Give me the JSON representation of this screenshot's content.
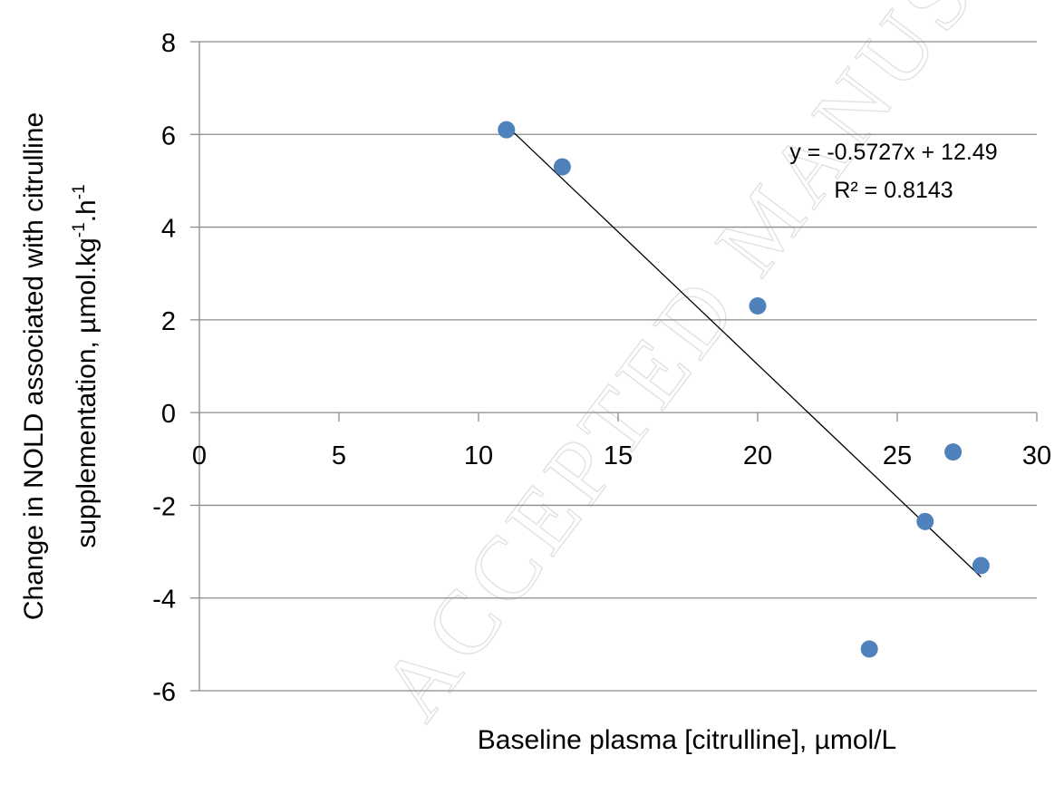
{
  "chart_data": {
    "type": "scatter",
    "title": "",
    "xlabel": "Baseline plasma [citrulline], µmol/L",
    "ylabel_line1": "Change in NOLD associated with citrulline",
    "ylabel_line2": "supplementation, µmol.kg",
    "ylabel_sup1": "-1",
    "ylabel_mid": ".h",
    "ylabel_sup2": "-1",
    "xlim": [
      0,
      30
    ],
    "ylim": [
      -6,
      8
    ],
    "x_ticks": [
      0,
      5,
      10,
      15,
      20,
      25,
      30
    ],
    "y_ticks": [
      -6,
      -4,
      -2,
      0,
      2,
      4,
      6,
      8
    ],
    "grid": "horizontal",
    "points": [
      {
        "x": 11,
        "y": 6.1
      },
      {
        "x": 13,
        "y": 5.3
      },
      {
        "x": 20,
        "y": 2.3
      },
      {
        "x": 24,
        "y": -5.1
      },
      {
        "x": 26,
        "y": -2.35
      },
      {
        "x": 27,
        "y": -0.85
      },
      {
        "x": 28,
        "y": -3.3
      }
    ],
    "trendline": {
      "slope": -0.5727,
      "intercept": 12.49,
      "x_start": 11,
      "x_end": 28
    },
    "equation_label": "y = -0.5727x + 12.49",
    "r2_label": "R² = 0.8143",
    "marker_color": "#4f81bd",
    "grid_color": "#8c8c8c",
    "line_color": "#000000"
  },
  "watermark": "ACCEPTED MANUSCRIPT"
}
